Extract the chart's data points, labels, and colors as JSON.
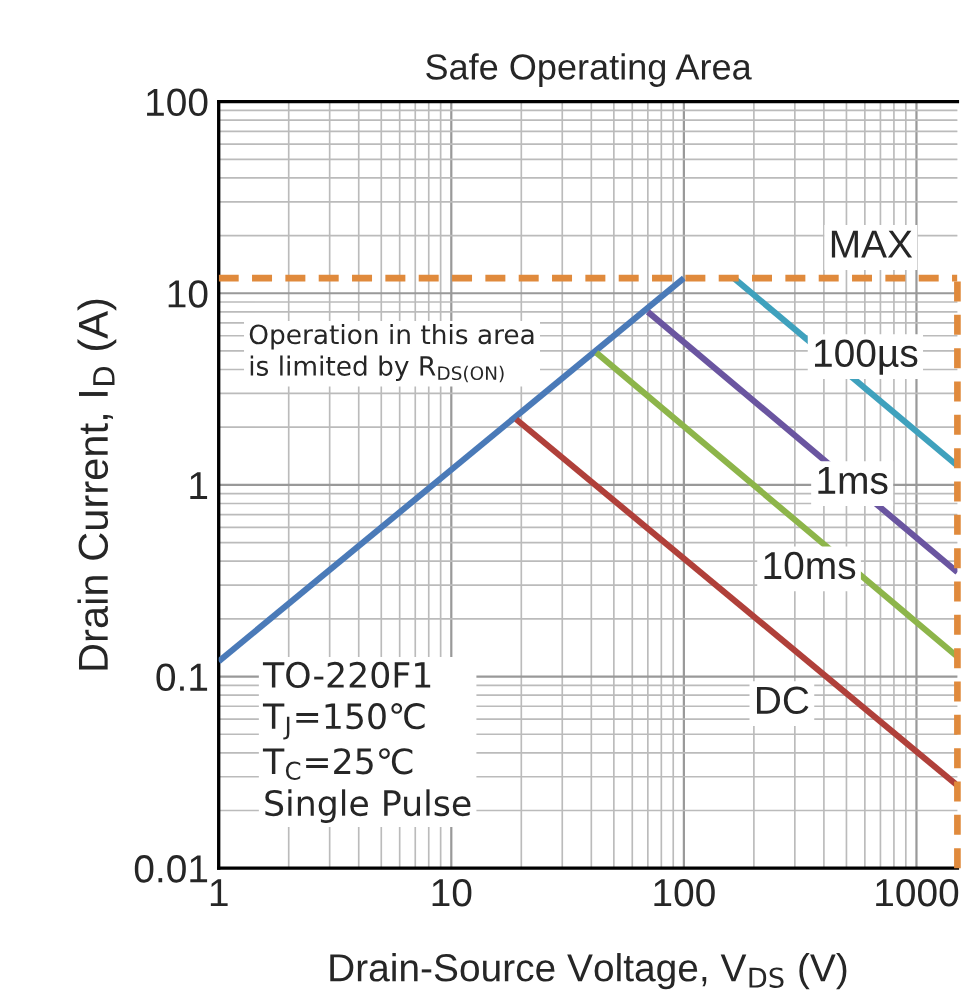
{
  "chart_data": {
    "type": "line",
    "title": "Safe Operating Area",
    "xlabel": "Drain-Source Voltage, V$_{DS}$ (V)",
    "ylabel": "Drain Current, I$_{D}$ (A)",
    "log": "xy",
    "xlim": [
      1,
      1500
    ],
    "ylim": [
      0.01,
      100
    ],
    "xticks": [
      1,
      10,
      100,
      1000
    ],
    "yticks": [
      0.01,
      0.1,
      1,
      10,
      100
    ],
    "grid": true,
    "legend": false,
    "series": [
      {
        "color": "#4a7ab8",
        "x": [
          1,
          100
        ],
        "values": [
          0.12,
          12
        ]
      },
      {
        "name": "100µs",
        "color": "#3fa1bd",
        "x": [
          164,
          1500
        ],
        "values": [
          12,
          1.26
        ]
      },
      {
        "name": "1ms",
        "color": "#6a55a0",
        "x": [
          70,
          1500
        ],
        "values": [
          8,
          0.35
        ]
      },
      {
        "name": "10ms",
        "color": "#8db54a",
        "x": [
          42,
          1500
        ],
        "values": [
          4.9,
          0.127
        ]
      },
      {
        "name": "DC",
        "color": "#b0403a",
        "x": [
          19,
          1500
        ],
        "values": [
          2.2,
          0.027
        ]
      }
    ],
    "ref_lines": [
      {
        "axis": "y",
        "value": 12,
        "label": "MAX",
        "color": "#e08a3c",
        "line_style": "dashed"
      },
      {
        "axis": "x",
        "value": 1500,
        "color": "#e08a3c",
        "line_style": "dashed"
      }
    ],
    "annotations": [
      "Operation in this area is limited by R$_{DS(ON)}$",
      "TO-220F1\nT$_{J}$=150℃\nT$_{C}$=25℃\nSingle Pulse"
    ]
  }
}
